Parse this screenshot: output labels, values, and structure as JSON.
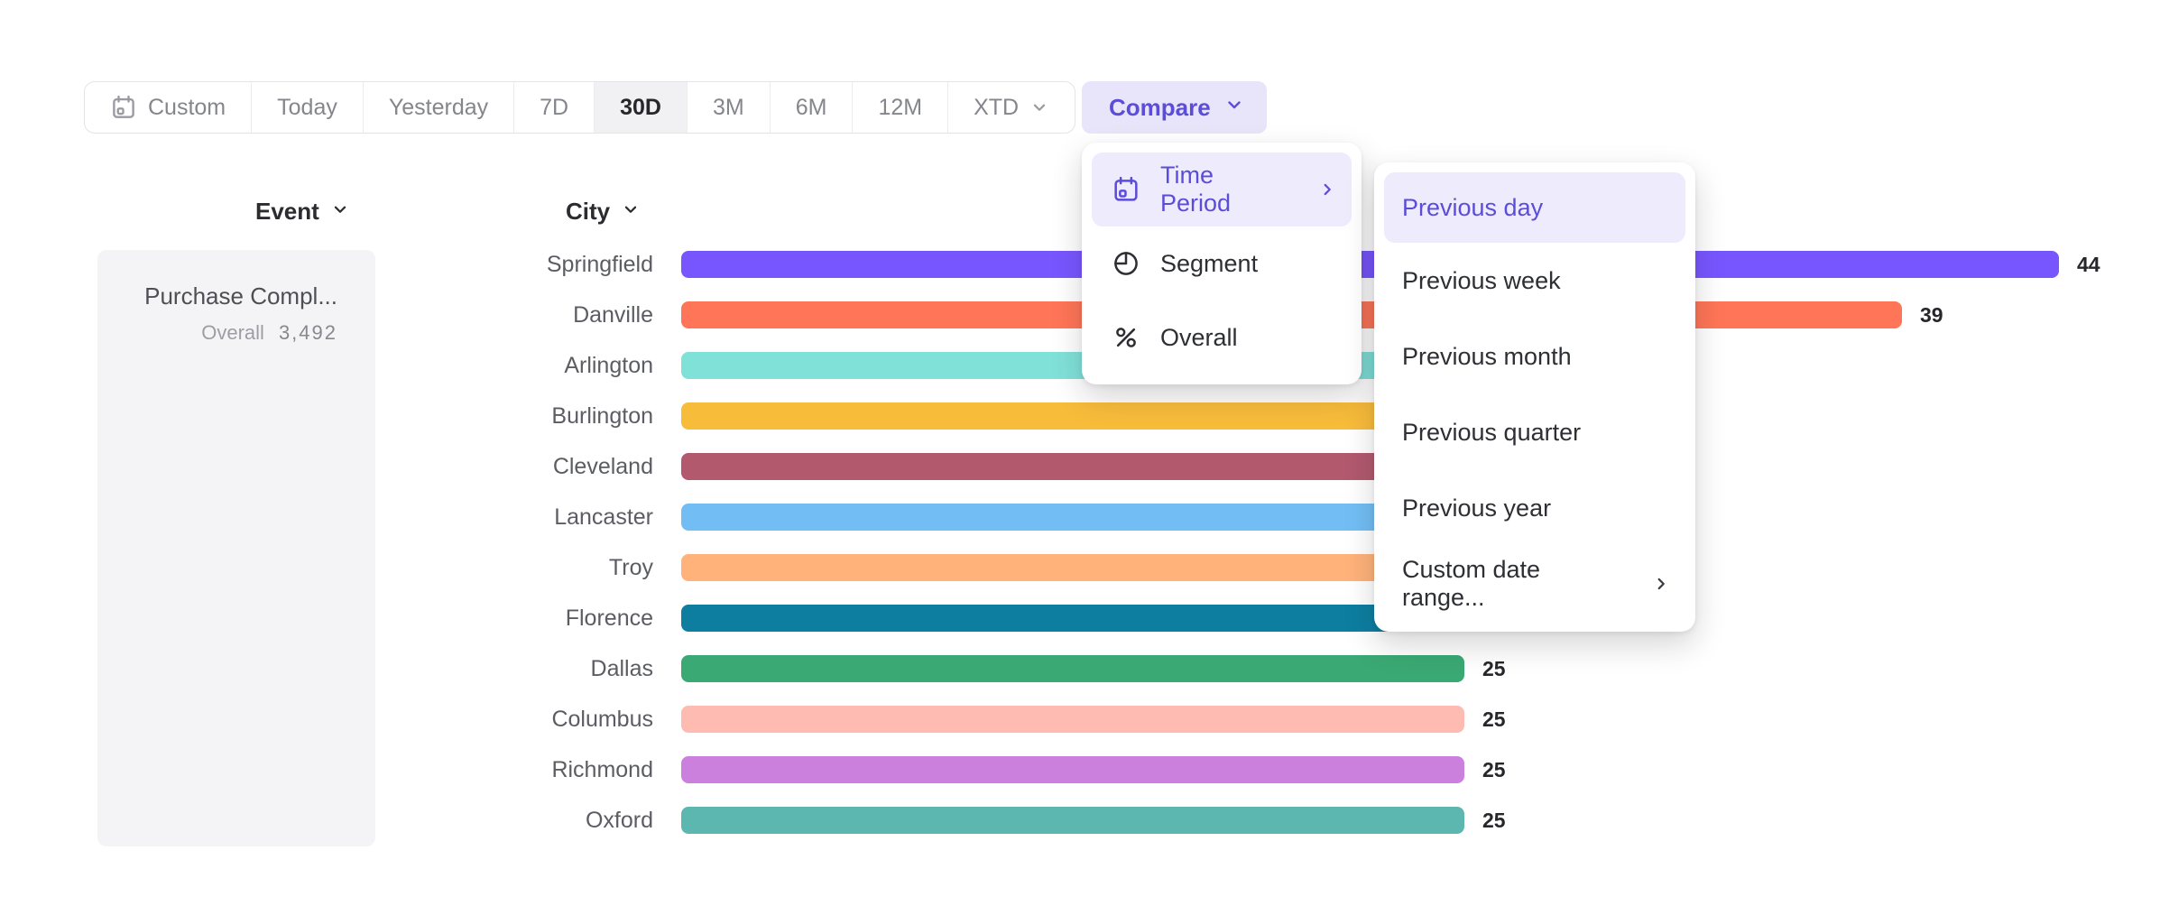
{
  "toolbar": {
    "date_ranges": [
      {
        "label": "Custom",
        "icon": "calendar",
        "selected": false
      },
      {
        "label": "Today",
        "selected": false
      },
      {
        "label": "Yesterday",
        "selected": false
      },
      {
        "label": "7D",
        "selected": false
      },
      {
        "label": "30D",
        "selected": true
      },
      {
        "label": "3M",
        "selected": false
      },
      {
        "label": "6M",
        "selected": false
      },
      {
        "label": "12M",
        "selected": false
      },
      {
        "label": "XTD",
        "chevron": "down",
        "selected": false
      }
    ],
    "compare": {
      "label": "Compare",
      "chevron": "down"
    }
  },
  "compare_menu": {
    "items": [
      {
        "label": "Time Period",
        "icon": "calendar",
        "chevron": "right",
        "highlighted": true
      },
      {
        "label": "Segment",
        "icon": "segment",
        "highlighted": false
      },
      {
        "label": "Overall",
        "icon": "percent",
        "highlighted": false
      }
    ]
  },
  "time_period_submenu": {
    "items": [
      {
        "label": "Previous day",
        "highlighted": true
      },
      {
        "label": "Previous week",
        "highlighted": false
      },
      {
        "label": "Previous month",
        "highlighted": false
      },
      {
        "label": "Previous quarter",
        "highlighted": false
      },
      {
        "label": "Previous year",
        "highlighted": false
      },
      {
        "label": "Custom date range...",
        "chevron": "right",
        "highlighted": false
      }
    ]
  },
  "event_column": {
    "header": "Event",
    "card": {
      "title": "Purchase Compl...",
      "metric_label": "Overall",
      "metric_value": "3,492"
    }
  },
  "chart_data": {
    "type": "bar",
    "orientation": "horizontal",
    "group_header": "City",
    "categories": [
      "Springfield",
      "Danville",
      "Arlington",
      "Burlington",
      "Cleveland",
      "Lancaster",
      "Troy",
      "Florence",
      "Dallas",
      "Columbus",
      "Richmond",
      "Oxford"
    ],
    "values": [
      44,
      39,
      32,
      31,
      30,
      29,
      28,
      27,
      25,
      25,
      25,
      25
    ],
    "value_labels": [
      "44",
      "39",
      "",
      "",
      "",
      "",
      "",
      "",
      "25",
      "25",
      "25",
      "25"
    ],
    "values_estimated_because_hidden_by_menu": [
      "Arlington",
      "Burlington",
      "Cleveland",
      "Lancaster",
      "Troy",
      "Florence"
    ],
    "colors": [
      "#7856FF",
      "#FF7557",
      "#80E1D9",
      "#F8BC3B",
      "#B2596E",
      "#72BEF4",
      "#FFB27A",
      "#0D7EA0",
      "#3BA974",
      "#FEBBB2",
      "#CA80DC",
      "#5BB7AF"
    ],
    "xlim": [
      0,
      46
    ],
    "grid": false,
    "legend": false
  },
  "theme": {
    "accent_text": "#5b4dd8",
    "accent_bg": "#e8e5fb",
    "highlight_bg": "#edebfc",
    "text_dark": "#26262b",
    "text_gray": "#85868c",
    "selected_seg_bg": "#f1f1f3",
    "card_bg": "#f4f4f6"
  }
}
